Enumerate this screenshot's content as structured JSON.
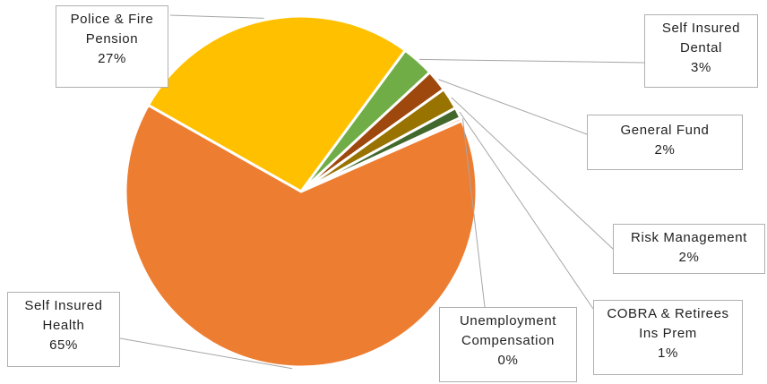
{
  "chart_data": {
    "type": "pie",
    "slices": [
      {
        "label": "Self Insured Health",
        "display_label_lines": [
          "Self Insured",
          "Health"
        ],
        "percent_label": "65%",
        "value": 65,
        "color": "#ED7D31"
      },
      {
        "label": "Police & Fire Pension",
        "display_label_lines": [
          "Police & Fire",
          "Pension"
        ],
        "percent_label": "27%",
        "value": 27,
        "color": "#FFC000"
      },
      {
        "label": "Self Insured Dental",
        "display_label_lines": [
          "Self Insured",
          "Dental"
        ],
        "percent_label": "3%",
        "value": 3,
        "color": "#70AD47"
      },
      {
        "label": "General Fund",
        "display_label_lines": [
          "General Fund"
        ],
        "percent_label": "2%",
        "value": 2,
        "color": "#9E480E"
      },
      {
        "label": "Risk Management",
        "display_label_lines": [
          "Risk Management"
        ],
        "percent_label": "2%",
        "value": 2,
        "color": "#997300"
      },
      {
        "label": "COBRA & Retirees Ins Prem",
        "display_label_lines": [
          "COBRA & Retirees",
          "Ins Prem"
        ],
        "percent_label": "1%",
        "value": 1,
        "color": "#43682B"
      },
      {
        "label": "Unemployment Compensation",
        "display_label_lines": [
          "Unemployment",
          "Compensation"
        ],
        "percent_label": "0%",
        "value": 0.3,
        "color": "#F4B183"
      }
    ]
  }
}
